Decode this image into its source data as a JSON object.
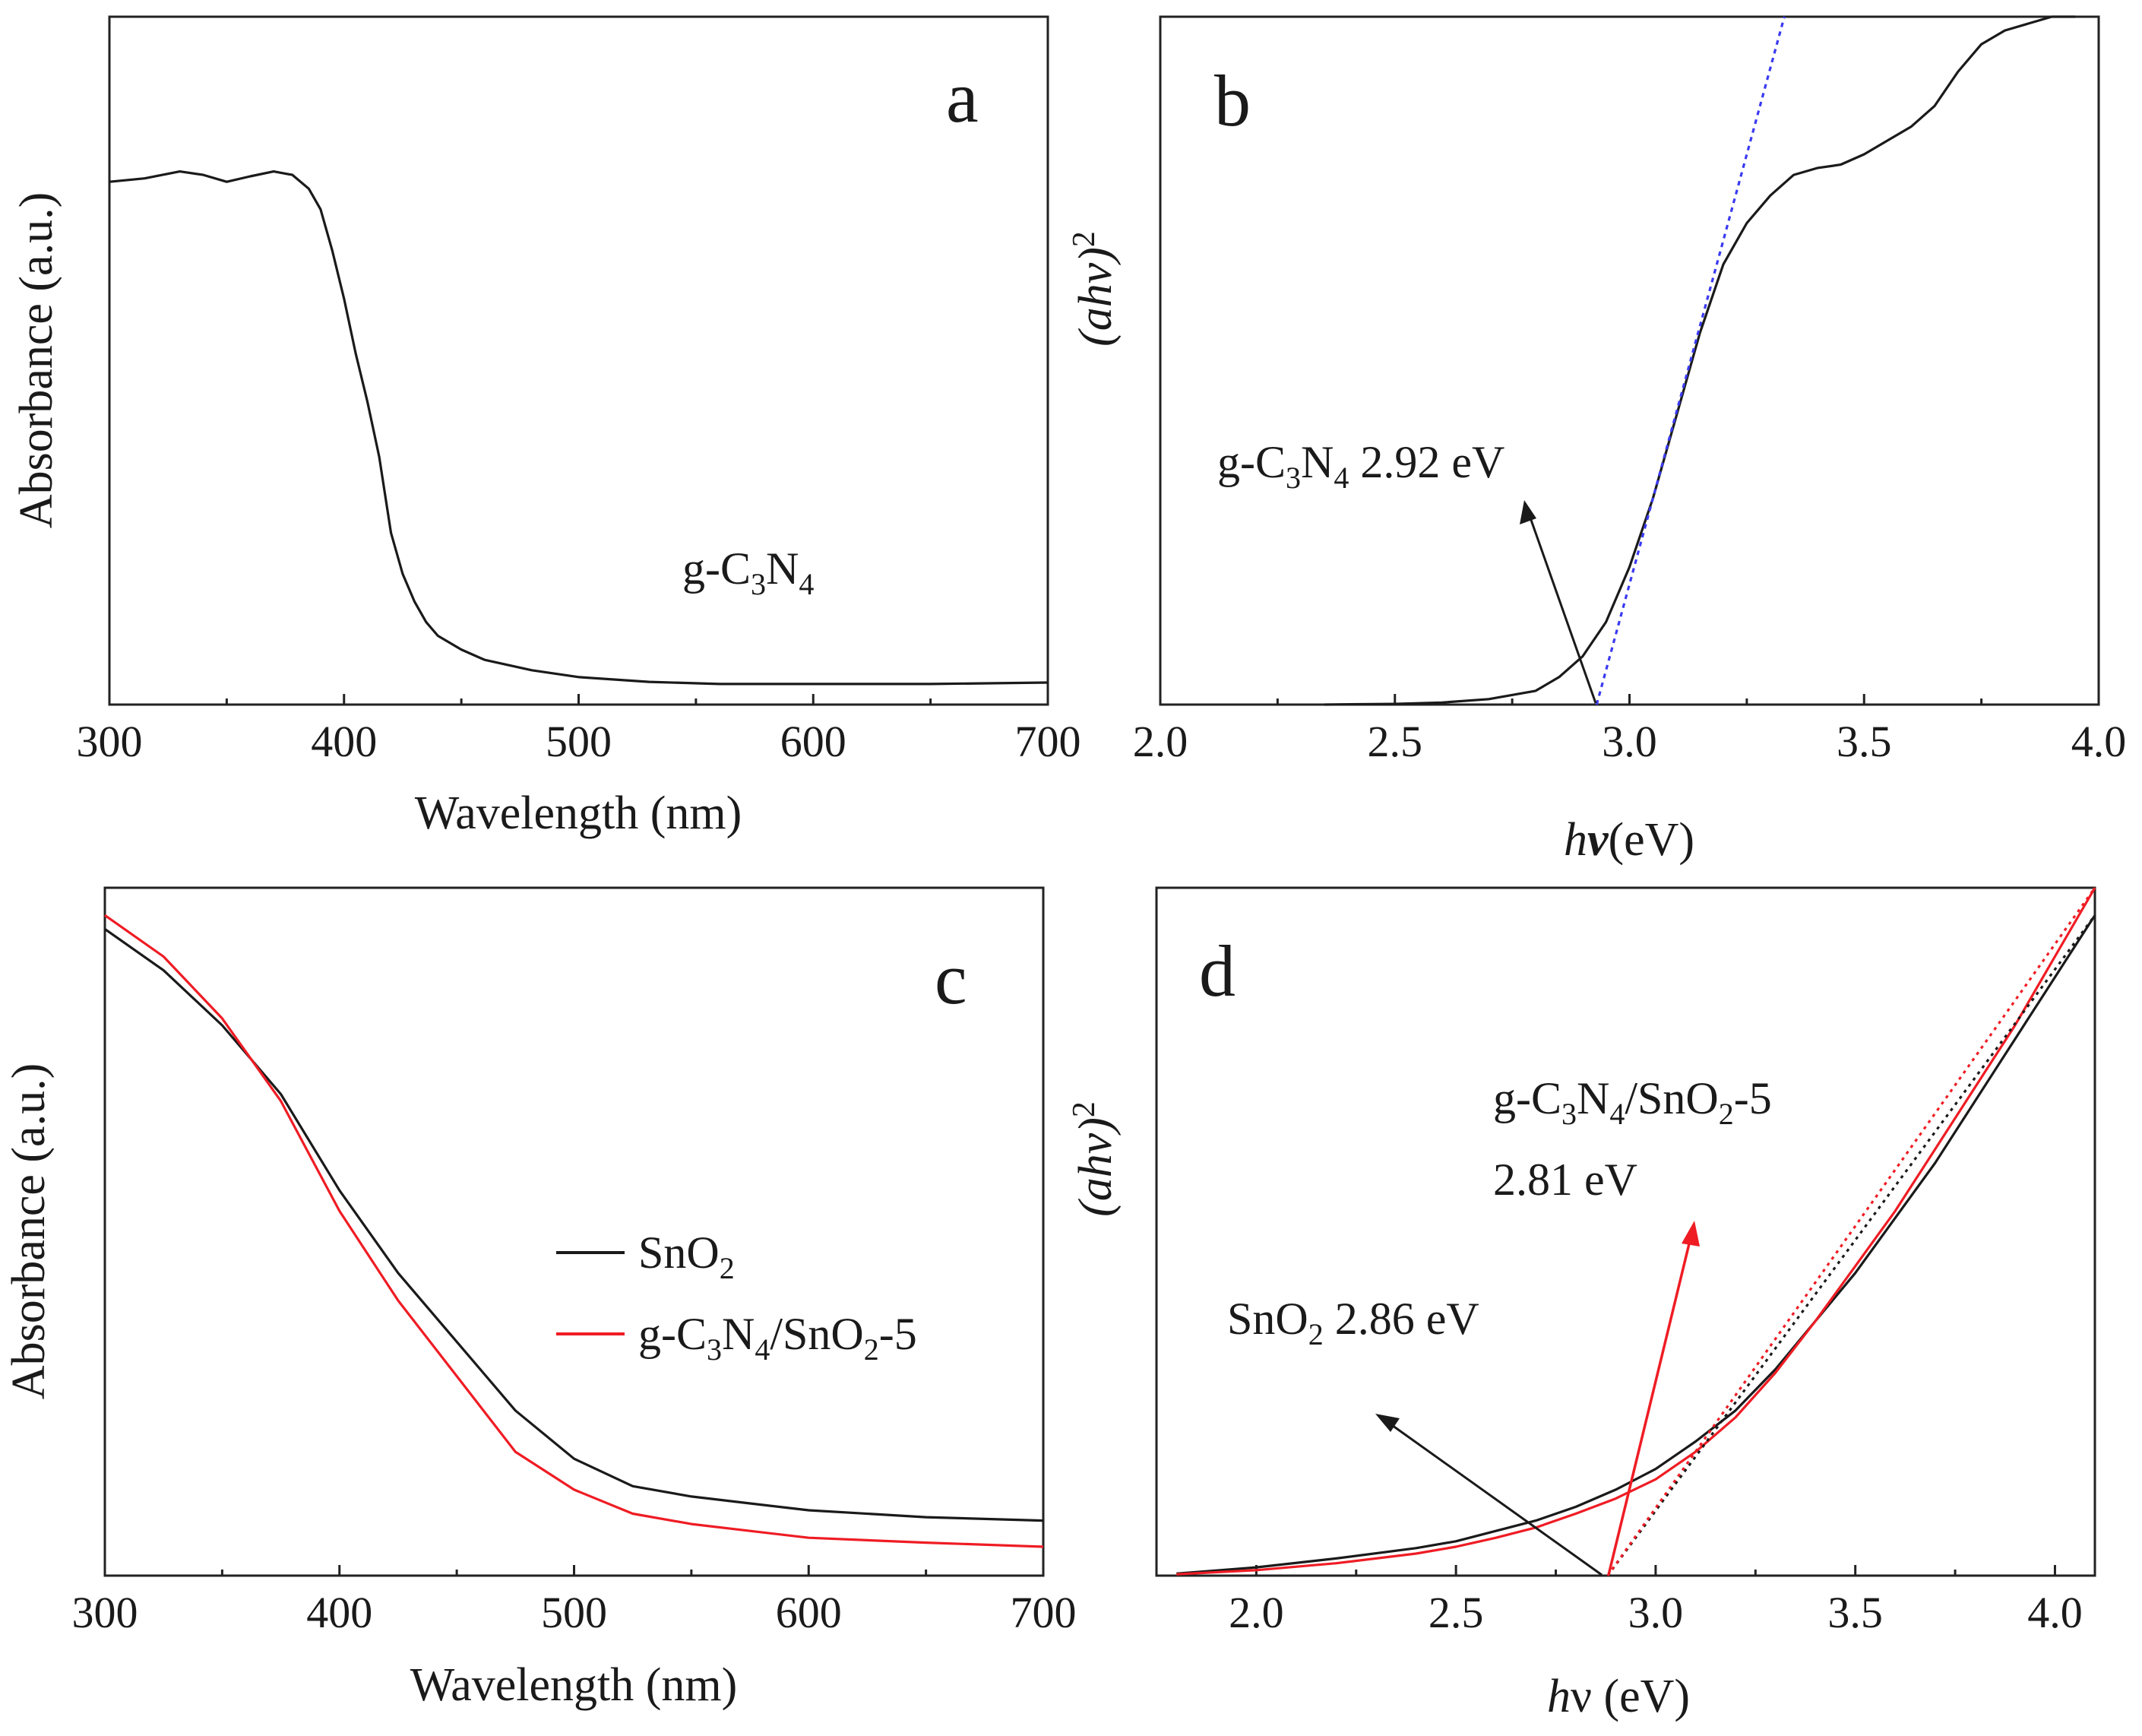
{
  "colors": {
    "black": "#1a1a1a",
    "red": "#ef1c24",
    "blue": "#3a3af0"
  },
  "chart_data": [
    {
      "panel": "a",
      "type": "line",
      "title": "",
      "xlabel": "Wavelength (nm)",
      "ylabel": "Absorbance (a.u.)",
      "xlim": [
        300,
        700
      ],
      "ylim": [
        0,
        1
      ],
      "xticks": [
        "300",
        "400",
        "500",
        "600",
        "700"
      ],
      "annotations": [
        {
          "text": "g-C",
          "sub1": "3",
          "mid": "N",
          "sub2": "4"
        }
      ],
      "series": [
        {
          "name": "g-C3N4",
          "color": "#1a1a1a",
          "x": [
            300,
            315,
            330,
            340,
            350,
            360,
            370,
            378,
            385,
            390,
            395,
            400,
            405,
            410,
            415,
            420,
            425,
            430,
            435,
            440,
            450,
            460,
            480,
            500,
            530,
            560,
            600,
            650,
            700
          ],
          "y": [
            0.76,
            0.765,
            0.775,
            0.77,
            0.76,
            0.768,
            0.775,
            0.77,
            0.75,
            0.72,
            0.66,
            0.59,
            0.51,
            0.44,
            0.36,
            0.25,
            0.19,
            0.15,
            0.12,
            0.1,
            0.08,
            0.065,
            0.05,
            0.04,
            0.033,
            0.03,
            0.03,
            0.03,
            0.032
          ]
        }
      ]
    },
    {
      "panel": "b",
      "type": "line",
      "title": "",
      "xlabel_italic": "h",
      "xlabel_bold": "ν",
      "xlabel_rest": "(eV)",
      "ylabel": "(ahν)",
      "ylabel_sup": "2",
      "xlim": [
        2.0,
        4.0
      ],
      "ylim": [
        0,
        1
      ],
      "xticks": [
        "2.0",
        "2.5",
        "3.0",
        "3.5",
        "4.0"
      ],
      "annotations": [
        {
          "text": "g-C",
          "sub1": "3",
          "mid": "N",
          "sub2": "4",
          "tail": " 2.92 eV",
          "target_x": 2.92
        }
      ],
      "series": [
        {
          "name": "g-C3N4",
          "color": "#1a1a1a",
          "x": [
            2.35,
            2.5,
            2.6,
            2.7,
            2.8,
            2.85,
            2.9,
            2.95,
            3.0,
            3.05,
            3.1,
            3.15,
            3.2,
            3.25,
            3.3,
            3.35,
            3.4,
            3.45,
            3.5,
            3.55,
            3.6,
            3.65,
            3.7,
            3.75,
            3.8,
            3.85,
            3.9,
            3.95
          ],
          "y": [
            0.0,
            0.001,
            0.003,
            0.008,
            0.02,
            0.04,
            0.07,
            0.12,
            0.2,
            0.3,
            0.42,
            0.54,
            0.64,
            0.7,
            0.74,
            0.77,
            0.78,
            0.785,
            0.8,
            0.82,
            0.84,
            0.87,
            0.92,
            0.96,
            0.98,
            0.99,
            1.0,
            1.0
          ]
        },
        {
          "name": "tangent",
          "color": "#3a3af0",
          "dashed": true,
          "x": [
            2.93,
            3.33
          ],
          "y": [
            0.0,
            1.0
          ]
        }
      ]
    },
    {
      "panel": "c",
      "type": "line",
      "title": "",
      "xlabel": "Wavelength (nm)",
      "ylabel": "Absorbance (a.u.)",
      "xlim": [
        300,
        700
      ],
      "ylim": [
        0,
        1
      ],
      "xticks": [
        "300",
        "400",
        "500",
        "600",
        "700"
      ],
      "legend_position": "center-right",
      "series": [
        {
          "name": "SnO2",
          "label": "SnO",
          "label_sub": "2",
          "label_tail": "",
          "color": "#1a1a1a",
          "x": [
            300,
            325,
            350,
            375,
            400,
            425,
            450,
            475,
            500,
            525,
            550,
            575,
            600,
            650,
            700
          ],
          "y": [
            0.94,
            0.88,
            0.8,
            0.7,
            0.56,
            0.44,
            0.34,
            0.24,
            0.17,
            0.13,
            0.115,
            0.105,
            0.095,
            0.085,
            0.08
          ]
        },
        {
          "name": "g-C3N4/SnO2-5",
          "label": "g-C",
          "label_sub1": "3",
          "label_mid": "N",
          "label_sub2": "4",
          "label_mid2": "/SnO",
          "label_sub3": "2",
          "label_tail": "-5",
          "color": "#ef1c24",
          "x": [
            300,
            325,
            350,
            375,
            400,
            425,
            450,
            475,
            500,
            525,
            550,
            575,
            600,
            650,
            700
          ],
          "y": [
            0.96,
            0.9,
            0.81,
            0.69,
            0.53,
            0.4,
            0.29,
            0.18,
            0.125,
            0.09,
            0.075,
            0.065,
            0.055,
            0.048,
            0.042
          ]
        }
      ]
    },
    {
      "panel": "d",
      "type": "line",
      "title": "",
      "xlabel_italic": "h",
      "xlabel_rest": "ν (eV)",
      "ylabel": "(ahν)",
      "ylabel_sup": "2",
      "xlim": [
        1.75,
        4.1
      ],
      "ylim": [
        0,
        1
      ],
      "xticks": [
        "2.0",
        "2.5",
        "3.0",
        "3.5",
        "4.0"
      ],
      "annotations": [
        {
          "text": "g-C",
          "sub1": "3",
          "mid": "N",
          "sub2": "4",
          "mid2": "/SnO",
          "sub3": "2",
          "tail": "-5",
          "line2": "2.81 eV",
          "color": "#ef1c24",
          "target_x": 2.88
        },
        {
          "text": "SnO",
          "sub1": "2",
          "tail": " 2.86 eV",
          "color": "#1a1a1a",
          "target_x": 2.88
        }
      ],
      "series": [
        {
          "name": "SnO2",
          "color": "#1a1a1a",
          "x": [
            1.8,
            2.0,
            2.2,
            2.4,
            2.5,
            2.6,
            2.7,
            2.8,
            2.9,
            3.0,
            3.1,
            3.2,
            3.3,
            3.4,
            3.5,
            3.6,
            3.7,
            3.8,
            3.9,
            4.0,
            4.1
          ],
          "y": [
            0.003,
            0.012,
            0.025,
            0.04,
            0.05,
            0.065,
            0.08,
            0.1,
            0.125,
            0.155,
            0.195,
            0.24,
            0.3,
            0.37,
            0.44,
            0.52,
            0.6,
            0.69,
            0.78,
            0.87,
            0.96
          ]
        },
        {
          "name": "g-C3N4/SnO2-5",
          "color": "#ef1c24",
          "x": [
            1.8,
            2.0,
            2.2,
            2.4,
            2.5,
            2.6,
            2.7,
            2.8,
            2.9,
            3.0,
            3.1,
            3.2,
            3.3,
            3.4,
            3.5,
            3.6,
            3.7,
            3.8,
            3.9,
            4.0,
            4.1
          ],
          "y": [
            0.002,
            0.008,
            0.018,
            0.032,
            0.042,
            0.055,
            0.07,
            0.09,
            0.112,
            0.14,
            0.18,
            0.23,
            0.295,
            0.37,
            0.45,
            0.53,
            0.62,
            0.71,
            0.8,
            0.9,
            1.0
          ]
        },
        {
          "name": "tangent-SnO2",
          "color": "#1a1a1a",
          "dotted": true,
          "x": [
            2.88,
            4.1
          ],
          "y": [
            0.0,
            0.96
          ]
        },
        {
          "name": "tangent-composite",
          "color": "#ef1c24",
          "dotted": true,
          "x": [
            2.88,
            4.1
          ],
          "y": [
            0.0,
            1.0
          ]
        }
      ]
    }
  ]
}
